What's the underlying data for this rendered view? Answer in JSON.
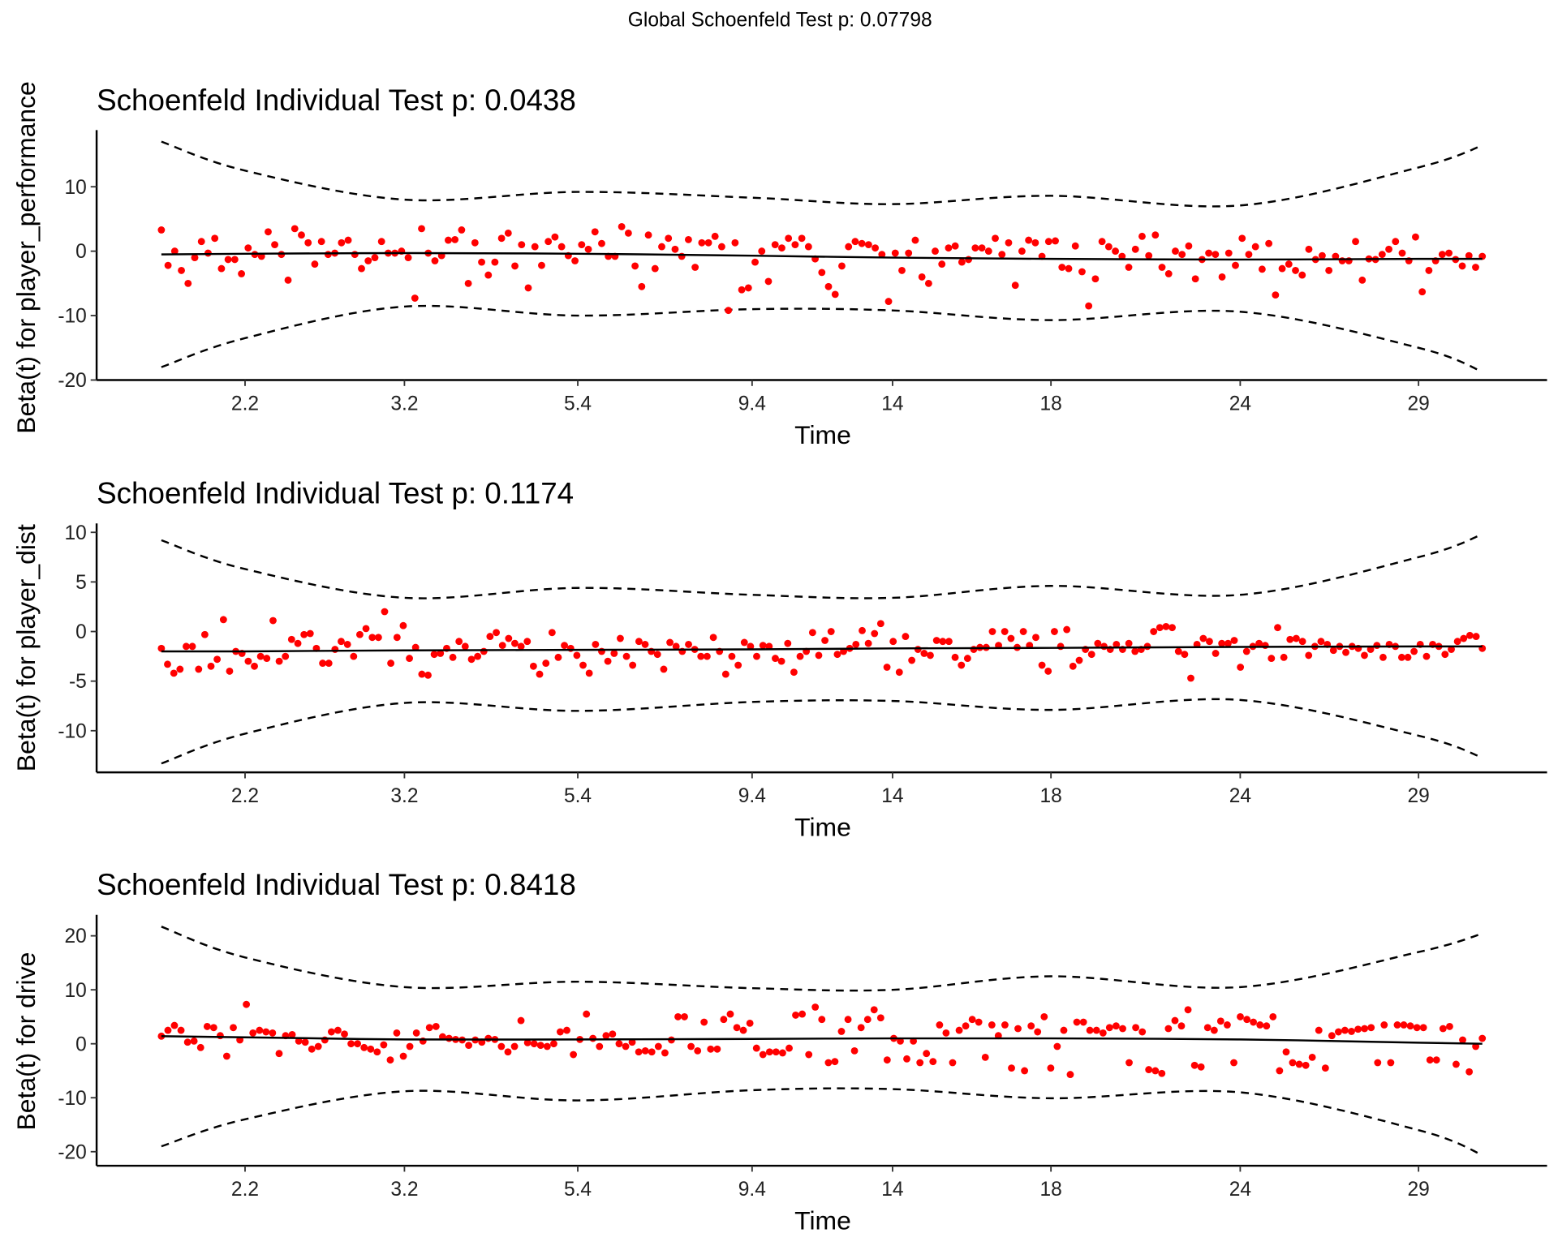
{
  "global_title": "Global Schoenfeld Test p: 0.07798",
  "colors": {
    "points": "#ff0000",
    "fit": "#000000",
    "band": "#000000",
    "axis": "#000000"
  },
  "chart_data": [
    {
      "type": "scatter",
      "title": "Schoenfeld Individual Test p: 0.0438",
      "xlabel": "Time",
      "ylabel": "Beta(t) for player_performance",
      "x_ticks": [
        "2.2",
        "3.2",
        "5.4",
        "9.4",
        "14",
        "18",
        "24",
        "29"
      ],
      "y_ticks": [
        10,
        0,
        -10,
        -20
      ],
      "ylim": [
        -20,
        18.8
      ],
      "x_range_time": [
        1.7,
        30.8
      ],
      "curve_knots_time": [
        1.7,
        2.2,
        3.2,
        5.4,
        9.4,
        14,
        18,
        24,
        29,
        30.8
      ],
      "fit": [
        -0.5,
        -0.4,
        -0.3,
        -0.4,
        -0.7,
        -1,
        -1.2,
        -1.3,
        -1.2,
        -1.2
      ],
      "upper": [
        17,
        12.5,
        8,
        9.2,
        8.3,
        7.3,
        8.6,
        7.1,
        13,
        16.4
      ],
      "lower": [
        -18,
        -13.5,
        -8.6,
        -10,
        -9,
        -9.2,
        -10.7,
        -9.4,
        -15,
        -18.7
      ],
      "points": [
        3.3,
        -2.2,
        0,
        -3,
        -5,
        -1,
        1.5,
        -0.3,
        2,
        -2.7,
        -1.3,
        -1.3,
        -3.5,
        0.5,
        -0.5,
        -0.8,
        3,
        1,
        -0.5,
        -4.5,
        3.5,
        2.5,
        1.3,
        -2,
        1.5,
        -0.5,
        -0.3,
        1.3,
        1.7,
        -0.5,
        -2.7,
        -1.5,
        -1,
        1.5,
        -0.3,
        -0.3,
        0,
        -1,
        -7.3,
        3.5,
        -0.3,
        -1.5,
        -0.7,
        1.7,
        1.8,
        3.3,
        -5,
        1.3,
        -1.7,
        -3.7,
        -1.7,
        2,
        2.8,
        -2.3,
        1,
        -5.7,
        0.7,
        -2.2,
        1.5,
        2.2,
        0.7,
        -0.7,
        -1.5,
        1,
        0.3,
        3,
        1.2,
        -0.8,
        -0.8,
        3.8,
        2.8,
        -2.3,
        -5.5,
        2.5,
        -2.7,
        0.7,
        2,
        0.3,
        -0.8,
        1.8,
        -2.5,
        1.3,
        1.3,
        2.3,
        0.7,
        -9.2,
        1.3,
        -6,
        -5.7,
        -1.7,
        0,
        -4.7,
        1,
        0.5,
        2,
        1,
        2,
        0.7,
        -1.2,
        -3.3,
        -5.5,
        -6.7,
        -2.3,
        0.7,
        1.5,
        1.2,
        1,
        0.5,
        -0.5,
        -7.8,
        -0.3,
        -3,
        -0.3,
        1.7,
        -4,
        -5,
        0,
        -2,
        0.5,
        0.8,
        -1.7,
        -1.3,
        0.5,
        0.5,
        0,
        2,
        -0.5,
        1.3,
        -5.3,
        0,
        1.7,
        1.3,
        -0.8,
        1.5,
        1.6,
        -2.5,
        -2.7,
        0.8,
        -3.2,
        -8.5,
        -4.3,
        1.5,
        0.7,
        0,
        -0.8,
        -2.5,
        0.3,
        2.3,
        -0.7,
        2.5,
        -2.5,
        -3.5,
        0,
        -0.5,
        0.8,
        -4.3,
        -1.3,
        -0.3,
        -0.5,
        -4,
        -0.3,
        -2.2,
        2,
        -0.5,
        0.7,
        -2.8,
        1.2,
        -6.8,
        -2.7,
        -2,
        -3,
        -3.7,
        0.3,
        -1.3,
        -0.7,
        -3,
        -0.8,
        -1.5,
        -1.5,
        1.5,
        -4.5,
        -1.2,
        -1.3,
        -0.5,
        0.3,
        1.5,
        -0.3,
        -1.5,
        2.2,
        -6.3,
        -3,
        -1.5,
        -0.5,
        -0.3,
        -1.3,
        -2.3,
        -0.7,
        -2.5,
        -0.8
      ]
    },
    {
      "type": "scatter",
      "title": "Schoenfeld Individual Test p: 0.1174",
      "xlabel": "Time",
      "ylabel": "Beta(t) for player_dist",
      "x_ticks": [
        "2.2",
        "3.2",
        "5.4",
        "9.4",
        "14",
        "18",
        "24",
        "29"
      ],
      "y_ticks": [
        10,
        5,
        0,
        -5,
        -10
      ],
      "ylim": [
        -14.2,
        10.9
      ],
      "x_range_time": [
        1.7,
        30.8
      ],
      "curve_knots_time": [
        1.7,
        2.2,
        3.2,
        5.4,
        9.4,
        14,
        18,
        24,
        29,
        30.8
      ],
      "fit": [
        -2,
        -2,
        -1.9,
        -1.85,
        -1.8,
        -1.7,
        -1.65,
        -1.55,
        -1.5,
        -1.5
      ],
      "upper": [
        9.2,
        6.3,
        3.4,
        4.4,
        3.7,
        3.4,
        4.6,
        3.7,
        7.5,
        9.8
      ],
      "lower": [
        -13.3,
        -10.3,
        -7.2,
        -8,
        -7.1,
        -7,
        -7.9,
        -6.9,
        -10.5,
        -12.7
      ],
      "points": [
        -1.7,
        -3.3,
        -4.2,
        -3.8,
        -1.5,
        -1.5,
        -3.8,
        -0.3,
        -3.5,
        -2.8,
        1.2,
        -4,
        -2,
        -2.2,
        -3,
        -3.5,
        -2.5,
        -2.7,
        1.1,
        -3,
        -2.5,
        -0.8,
        -1.2,
        -0.3,
        -0.2,
        -1.7,
        -3.2,
        -3.2,
        -1.8,
        -1,
        -1.3,
        -2.5,
        -0.3,
        0.3,
        -0.6,
        -0.6,
        2,
        -3.2,
        -0.6,
        0.6,
        -2.7,
        -1.6,
        -4.3,
        -4.4,
        -2.3,
        -2.2,
        -1.7,
        -2.6,
        -1,
        -1.5,
        -2.8,
        -2.5,
        -2,
        -0.5,
        -0.1,
        -1.4,
        -0.7,
        -1.2,
        -1.5,
        -1,
        -3.5,
        -4.3,
        -3.2,
        -0.1,
        -2.6,
        -1.4,
        -1.7,
        -2.4,
        -3.4,
        -4.2,
        -1.3,
        -2,
        -3,
        -2.2,
        -0.7,
        -2.5,
        -3.4,
        -1,
        -1.3,
        -2,
        -2.3,
        -3.8,
        -1.1,
        -1.5,
        -2,
        -1.3,
        -1.8,
        -2.5,
        -2.5,
        -0.6,
        -2,
        -4.3,
        -2.5,
        -3.4,
        -1.1,
        -1.5,
        -2.5,
        -1.4,
        -1.5,
        -2.7,
        -3,
        -1.2,
        -4.1,
        -2.5,
        -2,
        -0.1,
        -2.4,
        -0.9,
        0,
        -2.3,
        -2,
        -1.7,
        -1.3,
        0.1,
        -1.2,
        -0.2,
        0.8,
        -3.6,
        -1,
        -4.1,
        -0.5,
        -2.9,
        -1.8,
        -2.2,
        -2.4,
        -0.9,
        -1,
        -1,
        -2.6,
        -3.4,
        -2.7,
        -1.8,
        -1.6,
        -1.6,
        0,
        -1.4,
        0,
        -0.7,
        -1.6,
        0,
        -1.4,
        -0.6,
        -3.4,
        -4,
        0,
        -1.5,
        0.2,
        -3.5,
        -2.9,
        -1.8,
        -2.3,
        -1.2,
        -1.5,
        -1.8,
        -1.3,
        -1.8,
        -1.2,
        -2,
        -1.8,
        -1.5,
        0,
        0.4,
        0.5,
        0.4,
        -2,
        -2.3,
        -4.7,
        -1.3,
        -0.7,
        -1,
        -2.2,
        -1.2,
        -1.2,
        -0.9,
        -3.6,
        -2,
        -1.5,
        -1.2,
        -1.4,
        -2.7,
        0.4,
        -2.6,
        -0.8,
        -0.7,
        -1,
        -2.4,
        -1.5,
        -1,
        -1.3,
        -1.9,
        -1.5,
        -2.1,
        -1.5,
        -1.7,
        -2.4,
        -1.8,
        -1.4,
        -2.6,
        -1.3,
        -1.5,
        -2.6,
        -2.6,
        -2,
        -1.3,
        -2.5,
        -1.3,
        -1.5,
        -2.3,
        -1.8,
        -1,
        -0.7,
        -0.4,
        -0.5,
        -1.7
      ]
    },
    {
      "type": "scatter",
      "title": "Schoenfeld Individual Test p: 0.8418",
      "xlabel": "Time",
      "ylabel": "Beta(t) for drive",
      "x_ticks": [
        "2.2",
        "3.2",
        "5.4",
        "9.4",
        "14",
        "18",
        "24",
        "29"
      ],
      "y_ticks": [
        20,
        10,
        0,
        -10,
        -20
      ],
      "ylim": [
        -22.6,
        23.9
      ],
      "x_range_time": [
        1.7,
        30.8
      ],
      "curve_knots_time": [
        1.7,
        2.2,
        3.2,
        5.4,
        9.4,
        14,
        18,
        24,
        29,
        30.8
      ],
      "fit": [
        1.4,
        1.2,
        0.8,
        0.8,
        0.9,
        1,
        1,
        0.8,
        0.2,
        0
      ],
      "upper": [
        21.7,
        16,
        10.5,
        11.5,
        10.3,
        10,
        12.5,
        10.5,
        17,
        20.4
      ],
      "lower": [
        -19,
        -14,
        -8.8,
        -10.5,
        -8.6,
        -8.4,
        -10.1,
        -9,
        -16,
        -20.6
      ],
      "points": [
        1.4,
        2.5,
        3.4,
        2.5,
        0.3,
        0.5,
        -0.7,
        3.2,
        3,
        1.5,
        -2.3,
        3,
        0.7,
        7.3,
        2,
        2.5,
        2.2,
        2,
        -1.8,
        1.5,
        1.7,
        0.5,
        0.3,
        -1,
        -0.5,
        0.7,
        2.2,
        2.5,
        1.8,
        0,
        0,
        -0.7,
        -1,
        -1.5,
        -0.2,
        -3,
        2,
        -2.3,
        -0.5,
        2,
        0.5,
        3,
        3.2,
        1.3,
        1,
        0.8,
        0.7,
        -0.3,
        0.7,
        0.3,
        1,
        0.8,
        -0.5,
        -1.5,
        -0.5,
        4.3,
        0.2,
        0,
        -0.3,
        -0.5,
        0,
        2.2,
        2.5,
        -2,
        0.8,
        5.5,
        1,
        -0.5,
        1.5,
        1.8,
        0,
        -0.5,
        0.3,
        -1.5,
        -1.3,
        -1.5,
        -0.5,
        -1.7,
        0.7,
        5,
        5,
        -0.5,
        -1.3,
        4,
        -1,
        -1,
        4.5,
        5.5,
        3,
        2.5,
        3.8,
        -0.8,
        -2,
        -1.5,
        -1.5,
        -1.7,
        -0.8,
        5.3,
        5.5,
        -2,
        6.8,
        4.5,
        -3.5,
        -3.3,
        2.3,
        4.5,
        -1.3,
        3,
        4.5,
        6.3,
        4.8,
        -3,
        1,
        0.5,
        -2.8,
        0.5,
        -3.5,
        -1.8,
        -3.3,
        3.5,
        2,
        -3.5,
        2.5,
        3.3,
        4.5,
        4,
        -2.5,
        3.5,
        1.5,
        3.5,
        -4.5,
        2.8,
        -5,
        3.3,
        2.2,
        5,
        -4.5,
        -0.5,
        2.5,
        -5.7,
        4,
        4,
        2.5,
        2.5,
        2,
        3,
        3.3,
        2.8,
        -3.5,
        3,
        2.2,
        -4.8,
        -5,
        -5.5,
        2.8,
        4.3,
        3.3,
        6.3,
        -4,
        -4.3,
        3,
        2.5,
        4.2,
        3.5,
        -3.5,
        5,
        4.5,
        4,
        3.5,
        3.3,
        5,
        -5,
        -1.5,
        -3.5,
        -3.8,
        -4,
        -2.5,
        2.5,
        -4.5,
        1.5,
        2.2,
        2.5,
        2.3,
        2.7,
        2.8,
        3,
        -3.5,
        3.5,
        -3.5,
        3.5,
        3.5,
        3.3,
        3,
        3,
        -3,
        -3,
        2.8,
        3.2,
        -3.8,
        0.7,
        -5.2,
        -0.5,
        1
      ]
    }
  ]
}
